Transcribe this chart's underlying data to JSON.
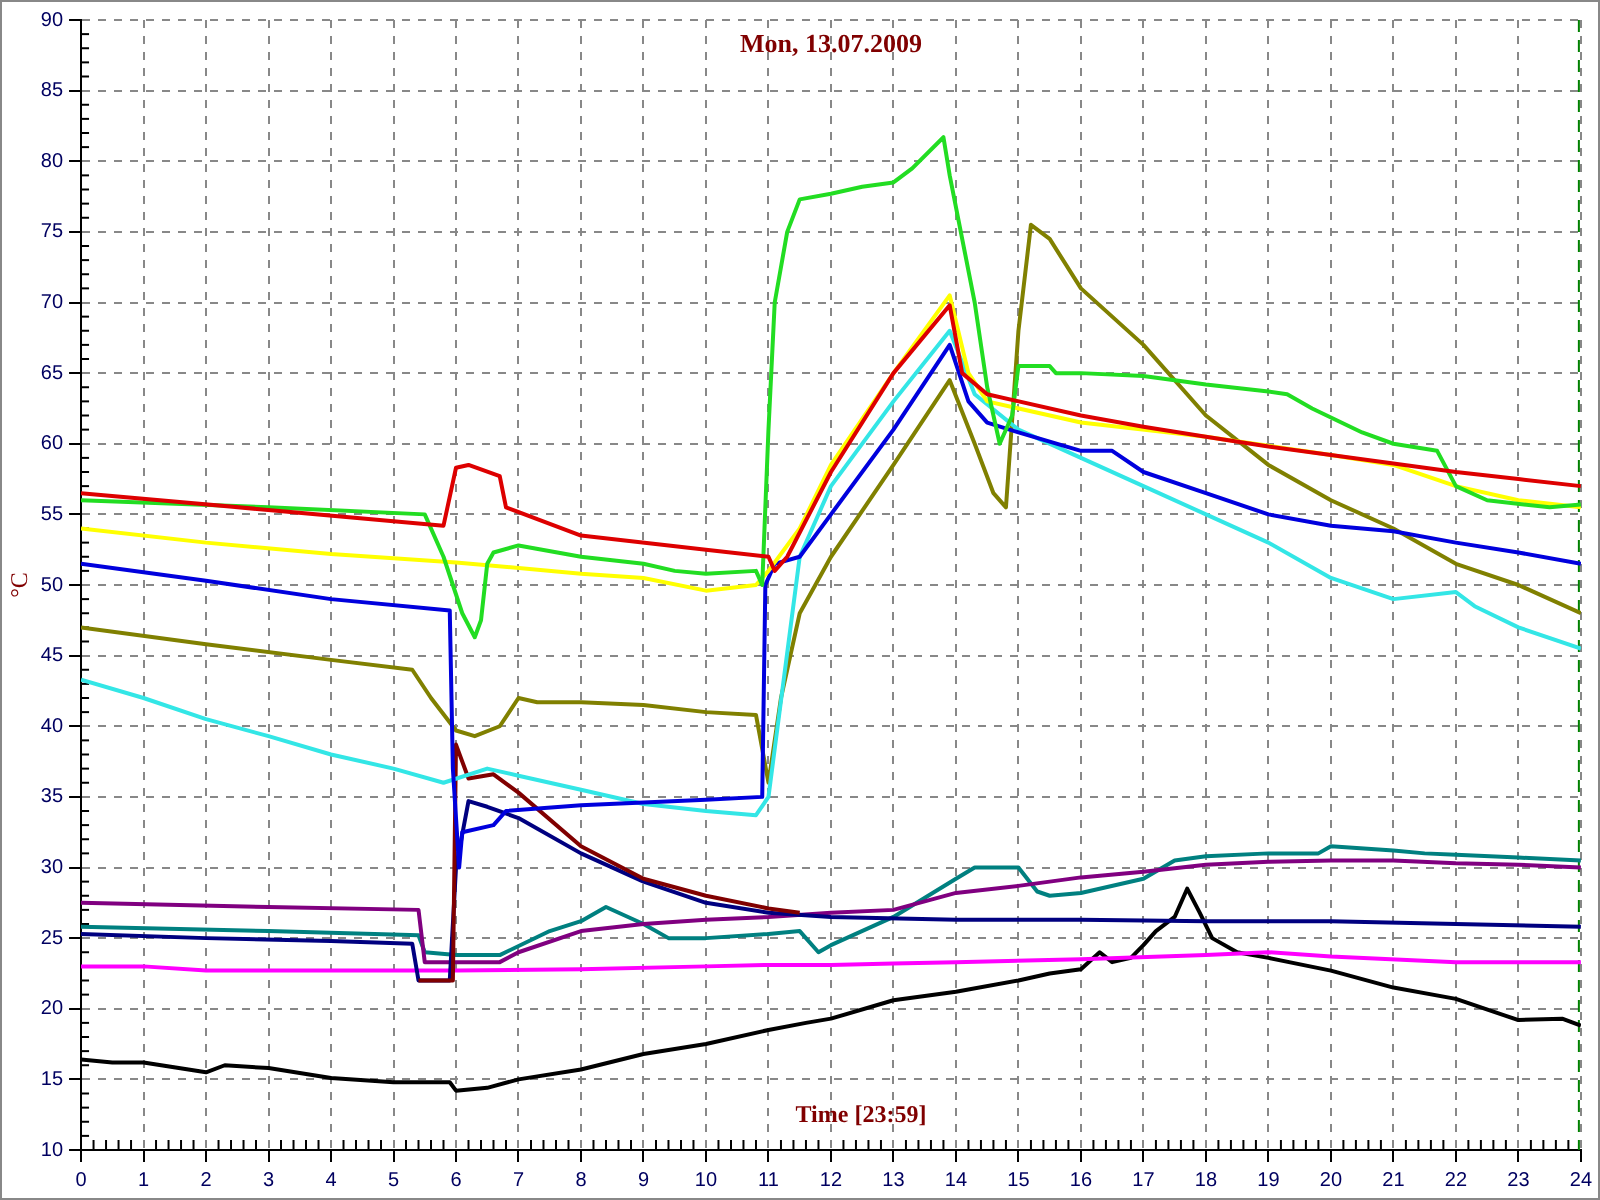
{
  "chart_data": {
    "type": "line",
    "title": "Mon, 13.07.2009",
    "xlabel": "Time [23:59]",
    "ylabel": "°C",
    "xlim": [
      0,
      24
    ],
    "xticks": [
      0,
      1,
      2,
      3,
      4,
      5,
      6,
      7,
      8,
      9,
      10,
      11,
      12,
      13,
      14,
      15,
      16,
      17,
      18,
      19,
      20,
      21,
      22,
      23,
      24
    ],
    "ylim": [
      10,
      90
    ],
    "yticks": [
      10,
      15,
      20,
      25,
      30,
      35,
      40,
      45,
      50,
      55,
      60,
      65,
      70,
      75,
      80,
      85,
      90
    ],
    "grid": true,
    "marker": "none",
    "line_style": "solid",
    "ref_lines": [
      {
        "axis": "x",
        "value": 24,
        "color": "#008000",
        "line_style": "dashed"
      }
    ],
    "series": [
      {
        "color": "#dd0000",
        "x": [
          0,
          5.8,
          6.0,
          6.2,
          6.7,
          6.8,
          8,
          10,
          11,
          11.1,
          11.3,
          12,
          13,
          13.9,
          14.1,
          14.5,
          16,
          17,
          18,
          19,
          20,
          21,
          22,
          23,
          24
        ],
        "values": [
          56.5,
          54.2,
          58.3,
          58.5,
          57.7,
          55.5,
          53.5,
          52.5,
          52,
          51,
          52,
          58,
          65,
          69.8,
          65,
          63.5,
          62,
          61.2,
          60.5,
          59.8,
          59.2,
          58.6,
          58,
          57.5,
          57
        ]
      },
      {
        "color": "#22dd22",
        "x": [
          0,
          3,
          5.5,
          5.8,
          6.1,
          6.3,
          6.4,
          6.5,
          6.6,
          7,
          8,
          9,
          9.5,
          10,
          10.8,
          10.9,
          11,
          11.1,
          11.3,
          11.5,
          12,
          12.5,
          13,
          13.3,
          13.8,
          13.9,
          14.3,
          14.5,
          14.7,
          14.9,
          15,
          15.5,
          15.6,
          16,
          17,
          18,
          19,
          19.3,
          19.7,
          20.5,
          21,
          21.7,
          22,
          22.5,
          23.5,
          24
        ],
        "values": [
          56,
          55.5,
          55,
          52,
          48,
          46.3,
          47.5,
          51.5,
          52.3,
          52.8,
          52,
          51.5,
          51,
          50.8,
          51,
          50,
          61,
          70,
          75,
          77.3,
          77.7,
          78.2,
          78.5,
          79.5,
          81.7,
          79,
          70,
          64,
          60,
          62,
          65.5,
          65.5,
          65,
          65,
          64.8,
          64.2,
          63.7,
          63.5,
          62.5,
          60.8,
          60,
          59.5,
          57,
          56,
          55.5,
          55.7
        ]
      },
      {
        "color": "#ffff00",
        "x": [
          0,
          2,
          4,
          6,
          8,
          9,
          10,
          10.8,
          11,
          11.5,
          12,
          13,
          13.9,
          14.2,
          14.5,
          16,
          18,
          20,
          21,
          22,
          23,
          24
        ],
        "values": [
          54,
          53,
          52.2,
          51.6,
          50.8,
          50.5,
          49.6,
          50,
          51,
          54,
          58.5,
          65,
          70.5,
          65,
          63,
          61.5,
          60.5,
          59.2,
          58.5,
          57,
          56,
          55.5
        ]
      },
      {
        "color": "#0000dd",
        "x": [
          0,
          2,
          4,
          5.9,
          5.95,
          6.05,
          6.1,
          6.6,
          6.8,
          8,
          10,
          10.9,
          10.95,
          11.1,
          11.5,
          12,
          13,
          13.9,
          14.2,
          14.5,
          15,
          16,
          16.5,
          17,
          18,
          19,
          20,
          21,
          22,
          23,
          24
        ],
        "values": [
          51.5,
          50.3,
          49,
          48.2,
          37,
          30,
          32.5,
          33,
          34,
          34.4,
          34.8,
          35,
          50,
          51.5,
          52,
          55,
          61,
          67,
          63,
          61.5,
          60.8,
          59.5,
          59.5,
          58,
          56.5,
          55,
          54.2,
          53.8,
          53,
          52.3,
          51.5
        ]
      },
      {
        "color": "#33e6e6",
        "x": [
          0,
          1,
          2,
          3,
          4,
          5,
          5.8,
          6.5,
          7,
          8,
          9,
          10,
          10.8,
          11,
          11.5,
          12,
          13,
          13.9,
          14.3,
          15,
          16,
          17,
          18,
          19,
          20,
          21,
          22,
          22.3,
          23,
          24
        ],
        "values": [
          43.3,
          42,
          40.5,
          39.3,
          38,
          37,
          36,
          37,
          36.5,
          35.5,
          34.5,
          34,
          33.7,
          35,
          52,
          57,
          63,
          68,
          63.5,
          61,
          59,
          57,
          55,
          53,
          50.5,
          49,
          49.5,
          48.5,
          47,
          45.5
        ]
      },
      {
        "color": "#808000",
        "x": [
          0,
          2,
          4,
          5.3,
          5.6,
          6,
          6.3,
          6.7,
          7,
          7.3,
          8,
          9,
          10,
          10.8,
          11,
          11.2,
          11.5,
          12,
          13,
          13.9,
          14.3,
          14.6,
          14.8,
          15,
          15.2,
          15.5,
          16,
          17,
          18,
          19,
          20,
          21,
          22,
          23,
          24
        ],
        "values": [
          47,
          45.8,
          44.7,
          44,
          42,
          39.7,
          39.3,
          40,
          42,
          41.7,
          41.7,
          41.5,
          41,
          40.8,
          36,
          42,
          48,
          52,
          58.5,
          64.5,
          60,
          56.5,
          55.5,
          68,
          75.5,
          74.5,
          71,
          67,
          62,
          58.5,
          56,
          54,
          51.5,
          50,
          48
        ]
      },
      {
        "color": "#800000",
        "x": [
          5.4,
          5.95,
          6.0,
          6.2,
          6.6,
          7,
          8,
          9,
          10,
          11,
          11.5
        ],
        "values": [
          22,
          22,
          38.7,
          36.3,
          36.6,
          35.3,
          31.5,
          29.2,
          28,
          27.1,
          26.8
        ]
      },
      {
        "color": "#000080",
        "x": [
          0,
          2,
          4,
          5.3,
          5.4,
          5.9,
          6.0,
          6.2,
          6.5,
          7,
          8,
          9,
          10,
          11,
          12,
          14,
          16,
          18,
          20,
          22,
          24
        ],
        "values": [
          25.3,
          25,
          24.8,
          24.6,
          22,
          22,
          30,
          34.7,
          34.3,
          33.5,
          31,
          29,
          27.5,
          26.8,
          26.5,
          26.3,
          26.3,
          26.2,
          26.2,
          26,
          25.8
        ]
      },
      {
        "color": "#800080",
        "x": [
          0,
          3,
          5.4,
          5.5,
          6.0,
          6.7,
          7,
          8,
          9,
          10,
          11,
          12,
          13,
          14,
          15,
          16,
          17,
          18,
          19,
          20,
          21,
          22,
          23,
          24
        ],
        "values": [
          27.5,
          27.2,
          27,
          23.3,
          23.3,
          23.3,
          24,
          25.5,
          26,
          26.3,
          26.5,
          26.8,
          27,
          28.2,
          28.7,
          29.3,
          29.7,
          30.2,
          30.4,
          30.5,
          30.5,
          30.3,
          30.2,
          30
        ]
      },
      {
        "color": "#008080",
        "x": [
          0,
          3,
          5.4,
          5.5,
          6,
          6.7,
          7.5,
          8,
          8.4,
          9,
          9.4,
          10,
          11,
          11.5,
          11.8,
          12,
          13,
          14,
          14.3,
          15,
          15.3,
          15.5,
          16,
          17,
          17.5,
          18,
          19,
          19.8,
          20,
          21,
          21.5,
          22,
          23,
          24
        ],
        "values": [
          25.8,
          25.5,
          25.2,
          24,
          23.8,
          23.8,
          25.5,
          26.2,
          27.2,
          26,
          25,
          25,
          25.3,
          25.5,
          24,
          24.5,
          26.5,
          29.2,
          30,
          30,
          28.3,
          28,
          28.2,
          29.2,
          30.5,
          30.8,
          31,
          31,
          31.5,
          31.2,
          31,
          30.9,
          30.7,
          30.5
        ]
      },
      {
        "color": "#ff00ff",
        "x": [
          0,
          1,
          2,
          4,
          6,
          8,
          10,
          11,
          12,
          13,
          14,
          16,
          18,
          19,
          20,
          22,
          24
        ],
        "values": [
          23,
          23,
          22.7,
          22.7,
          22.7,
          22.8,
          23,
          23.1,
          23.1,
          23.2,
          23.3,
          23.5,
          23.8,
          24,
          23.7,
          23.3,
          23.3
        ]
      },
      {
        "color": "#000000",
        "x": [
          0,
          0.5,
          1,
          2,
          2.3,
          3,
          4,
          5,
          5.9,
          6,
          6.5,
          7,
          8,
          9,
          10,
          11,
          11.6,
          12,
          13,
          14,
          15,
          15.5,
          16,
          16.3,
          16.5,
          16.8,
          17,
          17.2,
          17.5,
          17.7,
          17.9,
          18.1,
          18.5,
          19,
          20,
          21,
          22,
          22.8,
          23,
          23.7,
          24
        ],
        "values": [
          16.4,
          16.2,
          16.2,
          15.5,
          16,
          15.8,
          15.1,
          14.8,
          14.8,
          14.2,
          14.4,
          15,
          15.7,
          16.8,
          17.5,
          18.5,
          19,
          19.3,
          20.6,
          21.2,
          22,
          22.5,
          22.8,
          24,
          23.3,
          23.6,
          24.5,
          25.5,
          26.5,
          28.5,
          26.8,
          25,
          24,
          23.6,
          22.7,
          21.5,
          20.7,
          19.5,
          19.2,
          19.3,
          18.8
        ]
      }
    ]
  }
}
